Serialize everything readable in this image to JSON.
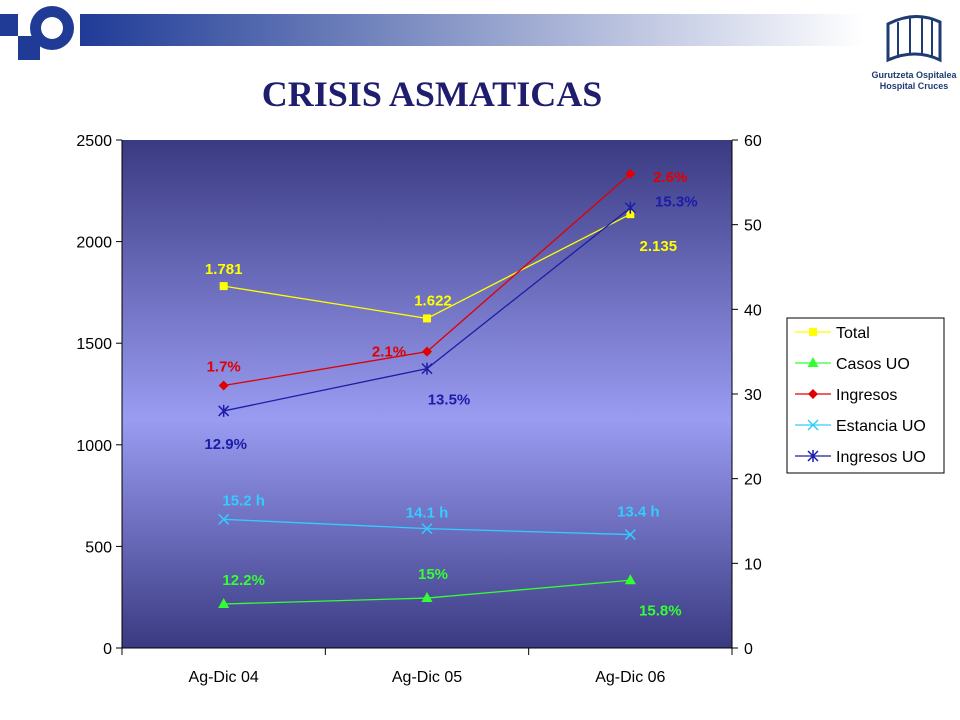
{
  "slide": {
    "title": "CRISIS ASMATICAS",
    "logo_line1": "Gurutzeta Ospitalea",
    "logo_line2": "Hospital Cruces",
    "colors": {
      "brand_blue": "#1f3b96",
      "title": "#1f1d6e"
    }
  },
  "chart_data": {
    "type": "line",
    "categories": [
      "Ag-Dic 04",
      "Ag-Dic 05",
      "Ag-Dic 06"
    ],
    "y_left": {
      "range": [
        0,
        2500
      ],
      "ticks": [
        "0",
        "500",
        "1000",
        "1500",
        "2000",
        "2500"
      ]
    },
    "y_right": {
      "range": [
        0,
        60
      ],
      "ticks": [
        "0",
        "10",
        "20",
        "30",
        "40",
        "50",
        "60"
      ]
    },
    "grid": false,
    "legend_position": "right",
    "series": [
      {
        "name": "Total",
        "axis": "left",
        "color": "#ffff00",
        "marker": "square",
        "values": [
          1781,
          1622,
          2135
        ],
        "labels": [
          "1.781",
          "1.622",
          "2.135"
        ]
      },
      {
        "name": "Casos UO",
        "axis": "right",
        "color": "#33ff33",
        "marker": "triangle",
        "values": [
          5.2,
          5.9,
          8.0
        ],
        "labels": [
          "12.2%",
          "15%",
          "15.8%"
        ]
      },
      {
        "name": "Ingresos",
        "axis": "right",
        "color": "#e00000",
        "marker": "diamond",
        "values": [
          31,
          35,
          56
        ],
        "labels": [
          "1.7%",
          "2.1%",
          "2.6%"
        ]
      },
      {
        "name": "Estancia UO",
        "axis": "right",
        "color": "#33ccff",
        "marker": "x",
        "values": [
          15.2,
          14.1,
          13.4
        ],
        "labels": [
          "15.2 h",
          "14.1 h",
          "13.4 h"
        ]
      },
      {
        "name": "Ingresos UO",
        "axis": "right",
        "color": "#1c1ca8",
        "marker": "star",
        "values": [
          28,
          33,
          52
        ],
        "labels": [
          "12.9%",
          "13.5%",
          "15.3%"
        ]
      }
    ]
  }
}
